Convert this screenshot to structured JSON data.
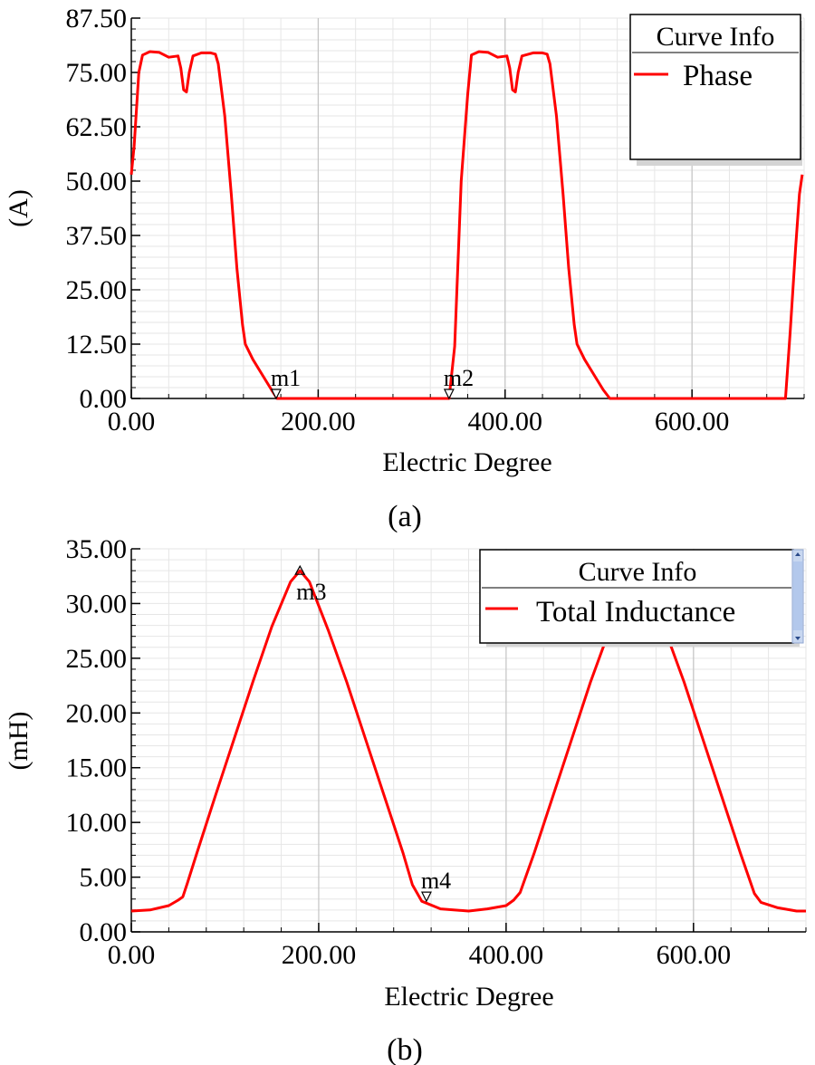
{
  "chart_data": [
    {
      "type": "line",
      "caption": "(a)",
      "xlabel": "Electric Degree",
      "ylabel": "(A)",
      "xlim": [
        0,
        720
      ],
      "ylim": [
        0,
        87.5
      ],
      "x_ticks": [
        "0.00",
        "200.00",
        "400.00",
        "600.00"
      ],
      "y_ticks": [
        "0.00",
        "12.50",
        "25.00",
        "37.50",
        "50.00",
        "62.50",
        "75.00",
        "87.50"
      ],
      "grid": true,
      "legend": {
        "title": "Curve Info",
        "position": "top-right"
      },
      "series": [
        {
          "name": "Phase",
          "color": "#ff0000",
          "points": [
            [
              0,
              51.5
            ],
            [
              3,
              58
            ],
            [
              8,
              75
            ],
            [
              12,
              79
            ],
            [
              20,
              79.8
            ],
            [
              30,
              79.6
            ],
            [
              40,
              78.5
            ],
            [
              50,
              78.8
            ],
            [
              53,
              76
            ],
            [
              56,
              71
            ],
            [
              59,
              70.5
            ],
            [
              62,
              75
            ],
            [
              66,
              78.8
            ],
            [
              75,
              79.5
            ],
            [
              85,
              79.5
            ],
            [
              90,
              79.2
            ],
            [
              93,
              77
            ],
            [
              100,
              65
            ],
            [
              107,
              47
            ],
            [
              113,
              30
            ],
            [
              119,
              17
            ],
            [
              122,
              12.5
            ],
            [
              130,
              9
            ],
            [
              140,
              5.5
            ],
            [
              150,
              2
            ],
            [
              156,
              0
            ],
            [
              340,
              0
            ],
            [
              346,
              12
            ],
            [
              353,
              50
            ],
            [
              360,
              70
            ],
            [
              364,
              79
            ],
            [
              372,
              79.8
            ],
            [
              382,
              79.6
            ],
            [
              392,
              78.5
            ],
            [
              402,
              78.8
            ],
            [
              405,
              76
            ],
            [
              408,
              71
            ],
            [
              411,
              70.5
            ],
            [
              414,
              75
            ],
            [
              418,
              78.8
            ],
            [
              430,
              79.5
            ],
            [
              440,
              79.5
            ],
            [
              445,
              79.2
            ],
            [
              448,
              77
            ],
            [
              455,
              65
            ],
            [
              462,
              47
            ],
            [
              468,
              30
            ],
            [
              474,
              17
            ],
            [
              477,
              12.5
            ],
            [
              485,
              9
            ],
            [
              495,
              5.5
            ],
            [
              505,
              2
            ],
            [
              512,
              0
            ],
            [
              700,
              0
            ],
            [
              705,
              15
            ],
            [
              711,
              35
            ],
            [
              715,
              47
            ],
            [
              718,
              51.5
            ]
          ]
        }
      ],
      "markers": [
        {
          "label": "m1",
          "x": 155,
          "y": 0
        },
        {
          "label": "m2",
          "x": 340,
          "y": 0
        }
      ]
    },
    {
      "type": "line",
      "caption": "(b)",
      "xlabel": "Electric Degree",
      "ylabel": "(mH)",
      "xlim": [
        0,
        720
      ],
      "ylim": [
        0,
        35
      ],
      "x_ticks": [
        "0.00",
        "200.00",
        "400.00",
        "600.00"
      ],
      "y_ticks": [
        "0.00",
        "5.00",
        "10.00",
        "15.00",
        "20.00",
        "25.00",
        "30.00",
        "35.00"
      ],
      "grid": true,
      "legend": {
        "title": "Curve Info",
        "position": "top-right"
      },
      "series": [
        {
          "name": "Total Inductance",
          "color": "#ff0000",
          "points": [
            [
              0,
              1.9
            ],
            [
              20,
              2.0
            ],
            [
              40,
              2.4
            ],
            [
              50,
              2.9
            ],
            [
              55,
              3.2
            ],
            [
              60,
              4.5
            ],
            [
              70,
              7.2
            ],
            [
              90,
              12.5
            ],
            [
              110,
              17.7
            ],
            [
              130,
              22.9
            ],
            [
              150,
              27.9
            ],
            [
              170,
              32.0
            ],
            [
              180,
              33.0
            ],
            [
              190,
              32.0
            ],
            [
              210,
              27.6
            ],
            [
              230,
              22.8
            ],
            [
              250,
              17.6
            ],
            [
              270,
              12.4
            ],
            [
              290,
              7.2
            ],
            [
              300,
              4.3
            ],
            [
              310,
              2.8
            ],
            [
              330,
              2.1
            ],
            [
              360,
              1.9
            ],
            [
              380,
              2.1
            ],
            [
              400,
              2.4
            ],
            [
              408,
              2.9
            ],
            [
              415,
              3.6
            ],
            [
              430,
              7.2
            ],
            [
              450,
              12.4
            ],
            [
              470,
              17.6
            ],
            [
              490,
              22.8
            ],
            [
              510,
              27.5
            ],
            [
              520,
              29.5
            ],
            [
              540,
              32.0
            ],
            [
              560,
              29.5
            ],
            [
              570,
              27.5
            ],
            [
              590,
              22.8
            ],
            [
              610,
              17.6
            ],
            [
              630,
              12.4
            ],
            [
              650,
              7.2
            ],
            [
              665,
              3.5
            ],
            [
              672,
              2.7
            ],
            [
              690,
              2.2
            ],
            [
              710,
              1.9
            ],
            [
              720,
              1.9
            ]
          ]
        }
      ],
      "markers": [
        {
          "label": "m3",
          "x": 180,
          "y": 33
        },
        {
          "label": "m4",
          "x": 315,
          "y": 2.8
        }
      ]
    }
  ],
  "legend_line_color": "#ff0000"
}
